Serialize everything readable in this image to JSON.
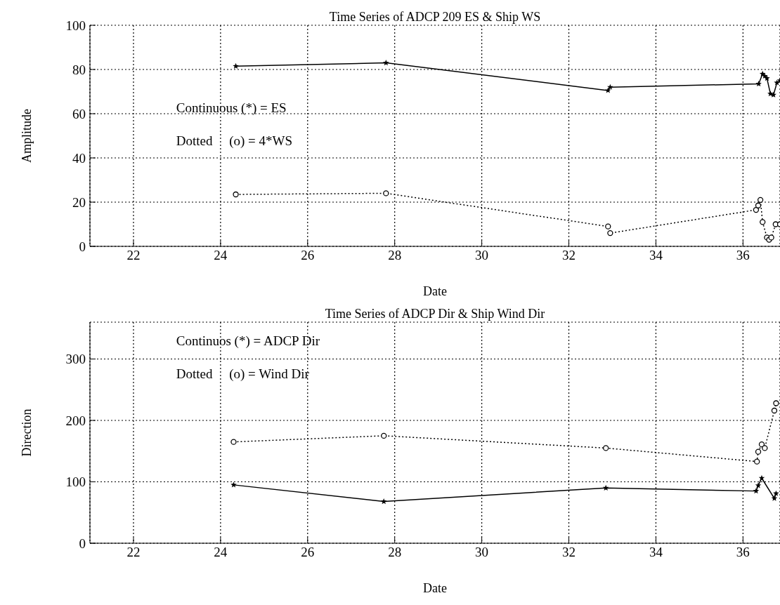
{
  "chart_data": [
    {
      "type": "line",
      "title": "Time Series of ADCP 209 ES & Ship WS",
      "xlabel": "Date",
      "ylabel": "Amplitude",
      "xlim": [
        21,
        36.85
      ],
      "xticks": [
        22,
        24,
        26,
        28,
        30,
        32,
        34,
        36
      ],
      "ylim": [
        0,
        100
      ],
      "yticks": [
        0,
        20,
        40,
        60,
        80,
        100
      ],
      "grid": true,
      "annotations": [
        "Continuous (*) = ES",
        "Dotted     (o) = 4*WS"
      ],
      "series": [
        {
          "color": "#000000",
          "marker": "star",
          "line_style": "solid",
          "x": [
            24.35,
            27.8,
            32.9,
            32.95,
            36.36,
            36.45,
            36.5,
            36.55,
            36.63,
            36.7,
            36.78,
            36.85
          ],
          "values": [
            81.5,
            83,
            70.5,
            72,
            73.5,
            78,
            77,
            76,
            69,
            68.5,
            74,
            75
          ]
        },
        {
          "color": "#000000",
          "marker": "circle",
          "line_style": "dotted",
          "x": [
            24.35,
            27.8,
            32.9,
            32.95,
            36.3,
            36.35,
            36.4,
            36.45,
            36.55,
            36.6,
            36.65,
            36.75,
            36.85
          ],
          "values": [
            23.5,
            24,
            9,
            6,
            16.5,
            18.5,
            21,
            11,
            4,
            3,
            4,
            10,
            10
          ]
        }
      ]
    },
    {
      "type": "line",
      "title": "Time Series of ADCP Dir & Ship Wind Dir",
      "xlabel": "Date",
      "ylabel": "Direction",
      "xlim": [
        21,
        36.85
      ],
      "xticks": [
        22,
        24,
        26,
        28,
        30,
        32,
        34,
        36
      ],
      "ylim": [
        0,
        360
      ],
      "yticks": [
        0,
        100,
        200,
        300
      ],
      "grid": true,
      "annotations": [
        "Continuos (*) = ADCP Dir",
        "Dotted     (o) = Wind Dir"
      ],
      "series": [
        {
          "color": "#000000",
          "marker": "star",
          "line_style": "solid",
          "x": [
            24.3,
            27.75,
            32.85,
            36.3,
            36.35,
            36.43,
            36.72,
            36.76
          ],
          "values": [
            95,
            68,
            90,
            85,
            94,
            106,
            73,
            81
          ]
        },
        {
          "color": "#000000",
          "marker": "circle",
          "line_style": "dotted",
          "x": [
            24.3,
            27.75,
            32.85,
            36.32,
            36.35,
            36.43,
            36.5,
            36.72,
            36.76
          ],
          "values": [
            165,
            175,
            155,
            133,
            149,
            161,
            155,
            216,
            228
          ]
        }
      ]
    }
  ]
}
